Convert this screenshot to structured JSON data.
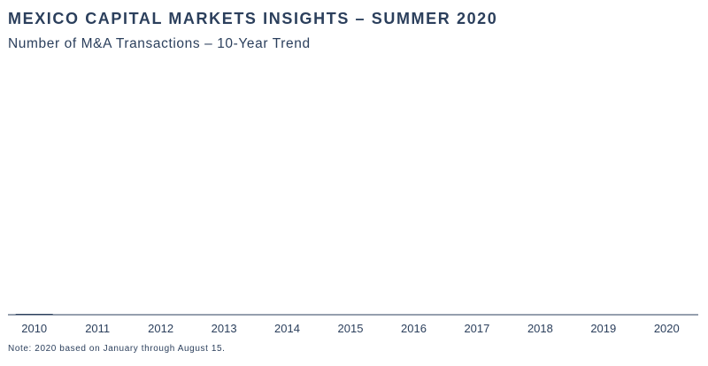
{
  "header": {
    "title": "MEXICO CAPITAL MARKETS INSIGHTS – SUMMER 2020",
    "subtitle": "Number of M&A Transactions – 10-Year Trend"
  },
  "footer": {
    "note": "Note: 2020 based on January through August 15."
  },
  "colors": {
    "text": "#2b3f5c",
    "axis": "#2b3f5c",
    "bar": "#2b3f5c"
  },
  "chart_data": {
    "type": "bar",
    "categories": [
      "2010",
      "2011",
      "2012",
      "2013",
      "2014",
      "2015",
      "2016",
      "2017",
      "2018",
      "2019",
      "2020"
    ],
    "values": [
      0,
      0,
      0,
      0,
      0,
      0,
      0,
      0,
      0,
      0,
      0
    ],
    "xlabel": "",
    "ylabel": "",
    "grid": false,
    "legend": "none"
  }
}
